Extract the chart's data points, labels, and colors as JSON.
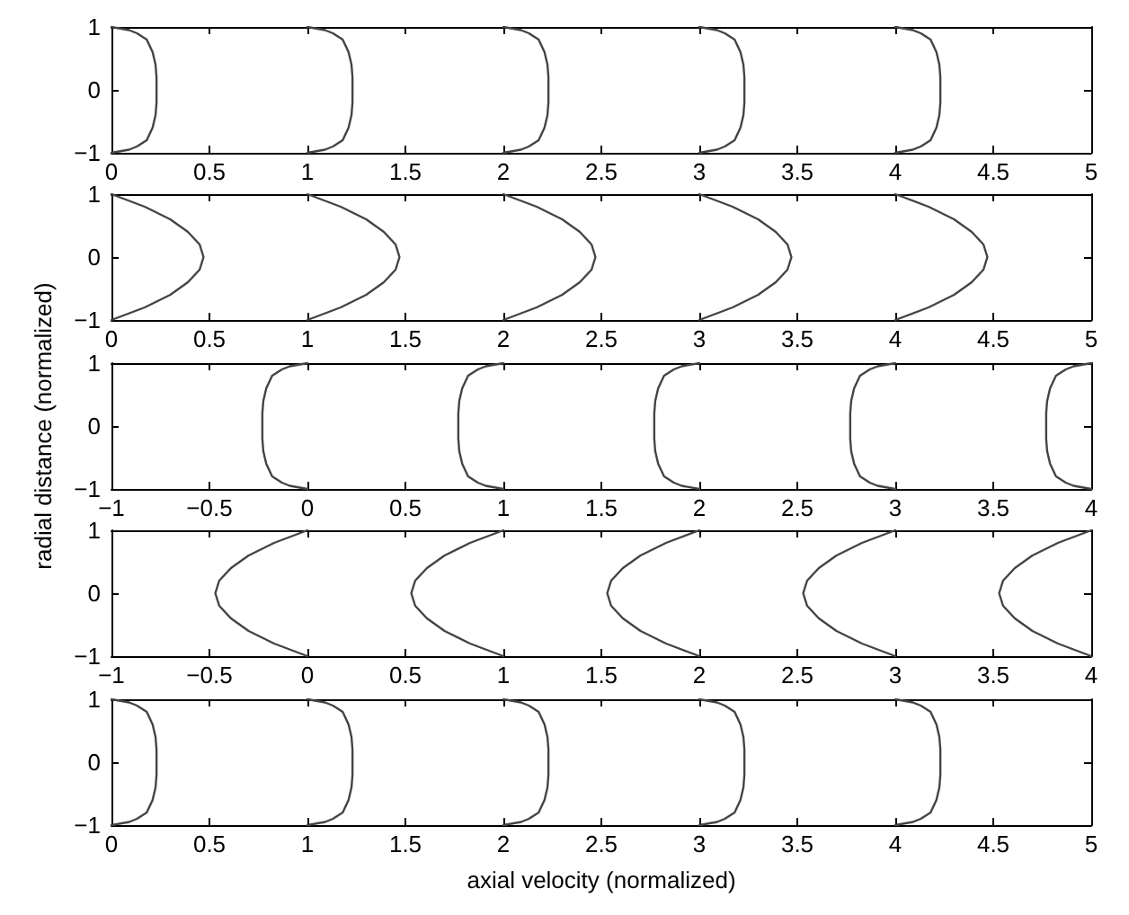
{
  "chart_data": [
    {
      "type": "line",
      "xlim": [
        0,
        5
      ],
      "xticks": [
        0,
        0.5,
        1,
        1.5,
        2,
        2.5,
        3,
        3.5,
        4,
        4.5,
        5
      ],
      "ylim": [
        -1,
        1
      ],
      "yticks": [
        -1,
        0,
        1
      ],
      "grid": false,
      "marker": "none",
      "line_style": "solid",
      "series": [
        {
          "color": "#444444",
          "x": [
            0,
            0.09,
            0.13,
            0.18,
            0.21,
            0.225,
            0.23,
            0.23,
            0.23,
            0.225,
            0.21,
            0.18,
            0.13,
            0.09,
            0
          ],
          "values": [
            1,
            0.95,
            0.9,
            0.8,
            0.6,
            0.4,
            0.2,
            0,
            -0.2,
            -0.4,
            -0.6,
            -0.8,
            -0.9,
            -0.95,
            -1
          ]
        },
        {
          "color": "#444444",
          "x": [
            1,
            1.09,
            1.13,
            1.18,
            1.21,
            1.225,
            1.23,
            1.23,
            1.23,
            1.225,
            1.21,
            1.18,
            1.13,
            1.09,
            1
          ],
          "values": [
            1,
            0.95,
            0.9,
            0.8,
            0.6,
            0.4,
            0.2,
            0,
            -0.2,
            -0.4,
            -0.6,
            -0.8,
            -0.9,
            -0.95,
            -1
          ]
        },
        {
          "color": "#444444",
          "x": [
            2,
            2.09,
            2.13,
            2.18,
            2.21,
            2.225,
            2.23,
            2.23,
            2.23,
            2.225,
            2.21,
            2.18,
            2.13,
            2.09,
            2
          ],
          "values": [
            1,
            0.95,
            0.9,
            0.8,
            0.6,
            0.4,
            0.2,
            0,
            -0.2,
            -0.4,
            -0.6,
            -0.8,
            -0.9,
            -0.95,
            -1
          ]
        },
        {
          "color": "#444444",
          "x": [
            3,
            3.09,
            3.13,
            3.18,
            3.21,
            3.225,
            3.23,
            3.23,
            3.23,
            3.225,
            3.21,
            3.18,
            3.13,
            3.09,
            3
          ],
          "values": [
            1,
            0.95,
            0.9,
            0.8,
            0.6,
            0.4,
            0.2,
            0,
            -0.2,
            -0.4,
            -0.6,
            -0.8,
            -0.9,
            -0.95,
            -1
          ]
        },
        {
          "color": "#444444",
          "x": [
            4,
            4.09,
            4.13,
            4.18,
            4.21,
            4.225,
            4.23,
            4.23,
            4.23,
            4.225,
            4.21,
            4.18,
            4.13,
            4.09,
            4
          ],
          "values": [
            1,
            0.95,
            0.9,
            0.8,
            0.6,
            0.4,
            0.2,
            0,
            -0.2,
            -0.4,
            -0.6,
            -0.8,
            -0.9,
            -0.95,
            -1
          ]
        }
      ]
    },
    {
      "type": "line",
      "xlim": [
        0,
        5
      ],
      "xticks": [
        0,
        0.5,
        1,
        1.5,
        2,
        2.5,
        3,
        3.5,
        4,
        4.5,
        5
      ],
      "ylim": [
        -1,
        1
      ],
      "yticks": [
        -1,
        0,
        1
      ],
      "grid": false,
      "marker": "none",
      "line_style": "solid",
      "series": [
        {
          "color": "#444444",
          "x": [
            0,
            0.17,
            0.3,
            0.39,
            0.45,
            0.47,
            0.45,
            0.39,
            0.3,
            0.17,
            0
          ],
          "values": [
            1,
            0.8,
            0.6,
            0.4,
            0.2,
            0,
            -0.2,
            -0.4,
            -0.6,
            -0.8,
            -1
          ]
        },
        {
          "color": "#444444",
          "x": [
            1,
            1.17,
            1.3,
            1.39,
            1.45,
            1.47,
            1.45,
            1.39,
            1.3,
            1.17,
            1
          ],
          "values": [
            1,
            0.8,
            0.6,
            0.4,
            0.2,
            0,
            -0.2,
            -0.4,
            -0.6,
            -0.8,
            -1
          ]
        },
        {
          "color": "#444444",
          "x": [
            2,
            2.17,
            2.3,
            2.39,
            2.45,
            2.47,
            2.45,
            2.39,
            2.3,
            2.17,
            2
          ],
          "values": [
            1,
            0.8,
            0.6,
            0.4,
            0.2,
            0,
            -0.2,
            -0.4,
            -0.6,
            -0.8,
            -1
          ]
        },
        {
          "color": "#444444",
          "x": [
            3,
            3.17,
            3.3,
            3.39,
            3.45,
            3.47,
            3.45,
            3.39,
            3.3,
            3.17,
            3
          ],
          "values": [
            1,
            0.8,
            0.6,
            0.4,
            0.2,
            0,
            -0.2,
            -0.4,
            -0.6,
            -0.8,
            -1
          ]
        },
        {
          "color": "#444444",
          "x": [
            4,
            4.17,
            4.3,
            4.39,
            4.45,
            4.47,
            4.45,
            4.39,
            4.3,
            4.17,
            4
          ],
          "values": [
            1,
            0.8,
            0.6,
            0.4,
            0.2,
            0,
            -0.2,
            -0.4,
            -0.6,
            -0.8,
            -1
          ]
        }
      ]
    },
    {
      "type": "line",
      "ylabel": "radial distance (normalized)",
      "xlim": [
        -1,
        4
      ],
      "xticks": [
        -1,
        -0.5,
        0,
        0.5,
        1,
        1.5,
        2,
        2.5,
        3,
        3.5,
        4
      ],
      "ylim": [
        -1,
        1
      ],
      "yticks": [
        -1,
        0,
        1
      ],
      "grid": false,
      "marker": "none",
      "line_style": "solid",
      "series": [
        {
          "color": "#444444",
          "x": [
            0,
            -0.09,
            -0.13,
            -0.18,
            -0.21,
            -0.225,
            -0.23,
            -0.23,
            -0.23,
            -0.225,
            -0.21,
            -0.18,
            -0.13,
            -0.09,
            0
          ],
          "values": [
            1,
            0.95,
            0.9,
            0.8,
            0.6,
            0.4,
            0.2,
            0,
            -0.2,
            -0.4,
            -0.6,
            -0.8,
            -0.9,
            -0.95,
            -1
          ]
        },
        {
          "color": "#444444",
          "x": [
            1,
            0.91,
            0.87,
            0.82,
            0.79,
            0.775,
            0.77,
            0.77,
            0.77,
            0.775,
            0.79,
            0.82,
            0.87,
            0.91,
            1
          ],
          "values": [
            1,
            0.95,
            0.9,
            0.8,
            0.6,
            0.4,
            0.2,
            0,
            -0.2,
            -0.4,
            -0.6,
            -0.8,
            -0.9,
            -0.95,
            -1
          ]
        },
        {
          "color": "#444444",
          "x": [
            2,
            1.91,
            1.87,
            1.82,
            1.79,
            1.775,
            1.77,
            1.77,
            1.77,
            1.775,
            1.79,
            1.82,
            1.87,
            1.91,
            2
          ],
          "values": [
            1,
            0.95,
            0.9,
            0.8,
            0.6,
            0.4,
            0.2,
            0,
            -0.2,
            -0.4,
            -0.6,
            -0.8,
            -0.9,
            -0.95,
            -1
          ]
        },
        {
          "color": "#444444",
          "x": [
            3,
            2.91,
            2.87,
            2.82,
            2.79,
            2.775,
            2.77,
            2.77,
            2.77,
            2.775,
            2.79,
            2.82,
            2.87,
            2.91,
            3
          ],
          "values": [
            1,
            0.95,
            0.9,
            0.8,
            0.6,
            0.4,
            0.2,
            0,
            -0.2,
            -0.4,
            -0.6,
            -0.8,
            -0.9,
            -0.95,
            -1
          ]
        },
        {
          "color": "#444444",
          "x": [
            4,
            3.91,
            3.87,
            3.82,
            3.79,
            3.775,
            3.77,
            3.77,
            3.77,
            3.775,
            3.79,
            3.82,
            3.87,
            3.91,
            4
          ],
          "values": [
            1,
            0.95,
            0.9,
            0.8,
            0.6,
            0.4,
            0.2,
            0,
            -0.2,
            -0.4,
            -0.6,
            -0.8,
            -0.9,
            -0.95,
            -1
          ]
        }
      ]
    },
    {
      "type": "line",
      "xlim": [
        -1,
        4
      ],
      "xticks": [
        -1,
        -0.5,
        0,
        0.5,
        1,
        1.5,
        2,
        2.5,
        3,
        3.5,
        4
      ],
      "ylim": [
        -1,
        1
      ],
      "yticks": [
        -1,
        0,
        1
      ],
      "grid": false,
      "marker": "none",
      "line_style": "solid",
      "series": [
        {
          "color": "#444444",
          "x": [
            0,
            -0.17,
            -0.3,
            -0.39,
            -0.45,
            -0.47,
            -0.45,
            -0.39,
            -0.3,
            -0.17,
            0
          ],
          "values": [
            1,
            0.8,
            0.6,
            0.4,
            0.2,
            0,
            -0.2,
            -0.4,
            -0.6,
            -0.8,
            -1
          ]
        },
        {
          "color": "#444444",
          "x": [
            1,
            0.83,
            0.7,
            0.61,
            0.55,
            0.53,
            0.55,
            0.61,
            0.7,
            0.83,
            1
          ],
          "values": [
            1,
            0.8,
            0.6,
            0.4,
            0.2,
            0,
            -0.2,
            -0.4,
            -0.6,
            -0.8,
            -1
          ]
        },
        {
          "color": "#444444",
          "x": [
            2,
            1.83,
            1.7,
            1.61,
            1.55,
            1.53,
            1.55,
            1.61,
            1.7,
            1.83,
            2
          ],
          "values": [
            1,
            0.8,
            0.6,
            0.4,
            0.2,
            0,
            -0.2,
            -0.4,
            -0.6,
            -0.8,
            -1
          ]
        },
        {
          "color": "#444444",
          "x": [
            3,
            2.83,
            2.7,
            2.61,
            2.55,
            2.53,
            2.55,
            2.61,
            2.7,
            2.83,
            3
          ],
          "values": [
            1,
            0.8,
            0.6,
            0.4,
            0.2,
            0,
            -0.2,
            -0.4,
            -0.6,
            -0.8,
            -1
          ]
        },
        {
          "color": "#444444",
          "x": [
            4,
            3.83,
            3.7,
            3.61,
            3.55,
            3.53,
            3.55,
            3.61,
            3.7,
            3.83,
            4
          ],
          "values": [
            1,
            0.8,
            0.6,
            0.4,
            0.2,
            0,
            -0.2,
            -0.4,
            -0.6,
            -0.8,
            -1
          ]
        }
      ]
    },
    {
      "type": "line",
      "xlabel": "axial velocity (normalized)",
      "xlim": [
        0,
        5
      ],
      "xticks": [
        0,
        0.5,
        1,
        1.5,
        2,
        2.5,
        3,
        3.5,
        4,
        4.5,
        5
      ],
      "ylim": [
        -1,
        1
      ],
      "yticks": [
        -1,
        0,
        1
      ],
      "grid": false,
      "marker": "none",
      "line_style": "solid",
      "series": [
        {
          "color": "#444444",
          "x": [
            0,
            0.09,
            0.13,
            0.18,
            0.21,
            0.225,
            0.23,
            0.23,
            0.23,
            0.225,
            0.21,
            0.18,
            0.13,
            0.09,
            0
          ],
          "values": [
            1,
            0.95,
            0.9,
            0.8,
            0.6,
            0.4,
            0.2,
            0,
            -0.2,
            -0.4,
            -0.6,
            -0.8,
            -0.9,
            -0.95,
            -1
          ]
        },
        {
          "color": "#444444",
          "x": [
            1,
            1.09,
            1.13,
            1.18,
            1.21,
            1.225,
            1.23,
            1.23,
            1.23,
            1.225,
            1.21,
            1.18,
            1.13,
            1.09,
            1
          ],
          "values": [
            1,
            0.95,
            0.9,
            0.8,
            0.6,
            0.4,
            0.2,
            0,
            -0.2,
            -0.4,
            -0.6,
            -0.8,
            -0.9,
            -0.95,
            -1
          ]
        },
        {
          "color": "#444444",
          "x": [
            2,
            2.09,
            2.13,
            2.18,
            2.21,
            2.225,
            2.23,
            2.23,
            2.23,
            2.225,
            2.21,
            2.18,
            2.13,
            2.09,
            2
          ],
          "values": [
            1,
            0.95,
            0.9,
            0.8,
            0.6,
            0.4,
            0.2,
            0,
            -0.2,
            -0.4,
            -0.6,
            -0.8,
            -0.9,
            -0.95,
            -1
          ]
        },
        {
          "color": "#444444",
          "x": [
            3,
            3.09,
            3.13,
            3.18,
            3.21,
            3.225,
            3.23,
            3.23,
            3.23,
            3.225,
            3.21,
            3.18,
            3.13,
            3.09,
            3
          ],
          "values": [
            1,
            0.95,
            0.9,
            0.8,
            0.6,
            0.4,
            0.2,
            0,
            -0.2,
            -0.4,
            -0.6,
            -0.8,
            -0.9,
            -0.95,
            -1
          ]
        },
        {
          "color": "#444444",
          "x": [
            4,
            4.09,
            4.13,
            4.18,
            4.21,
            4.225,
            4.23,
            4.23,
            4.23,
            4.225,
            4.21,
            4.18,
            4.13,
            4.09,
            4
          ],
          "values": [
            1,
            0.95,
            0.9,
            0.8,
            0.6,
            0.4,
            0.2,
            0,
            -0.2,
            -0.4,
            -0.6,
            -0.8,
            -0.9,
            -0.95,
            -1
          ]
        }
      ]
    }
  ]
}
